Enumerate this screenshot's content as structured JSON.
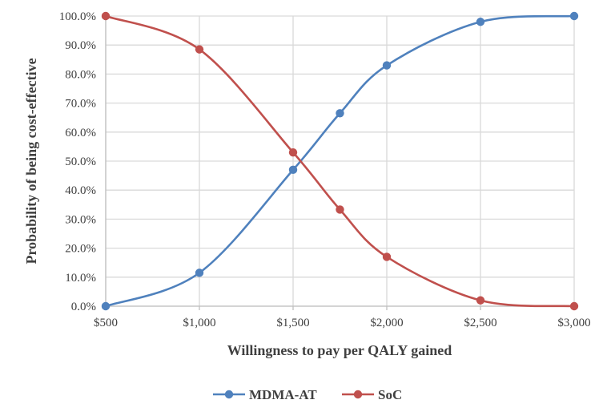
{
  "chart_data": {
    "type": "line",
    "x": [
      500,
      1000,
      1500,
      1750,
      2000,
      2500,
      3000
    ],
    "x_tick_labels": [
      "$500",
      "$1,000",
      "$1,500",
      "$2,000",
      "$2,500",
      "$3,000"
    ],
    "x_tick_values": [
      500,
      1000,
      1500,
      2000,
      2500,
      3000
    ],
    "y_tick_labels": [
      "0.0%",
      "10.0%",
      "20.0%",
      "30.0%",
      "40.0%",
      "50.0%",
      "60.0%",
      "70.0%",
      "80.0%",
      "90.0%",
      "100.0%"
    ],
    "xlim": [
      500,
      3000
    ],
    "ylim": [
      0,
      100
    ],
    "xlabel": "Willingness to pay per QALY gained",
    "ylabel": "Probability of being cost-effective",
    "grid": true,
    "legend_position": "bottom",
    "series": [
      {
        "name": "MDMA-AT",
        "color": "#4F81BD",
        "values": [
          0,
          11.5,
          47,
          66.5,
          83,
          98,
          100
        ]
      },
      {
        "name": "SoC",
        "color": "#C0504D",
        "values": [
          100,
          88.5,
          53,
          33.3,
          17,
          2,
          0
        ]
      }
    ]
  }
}
